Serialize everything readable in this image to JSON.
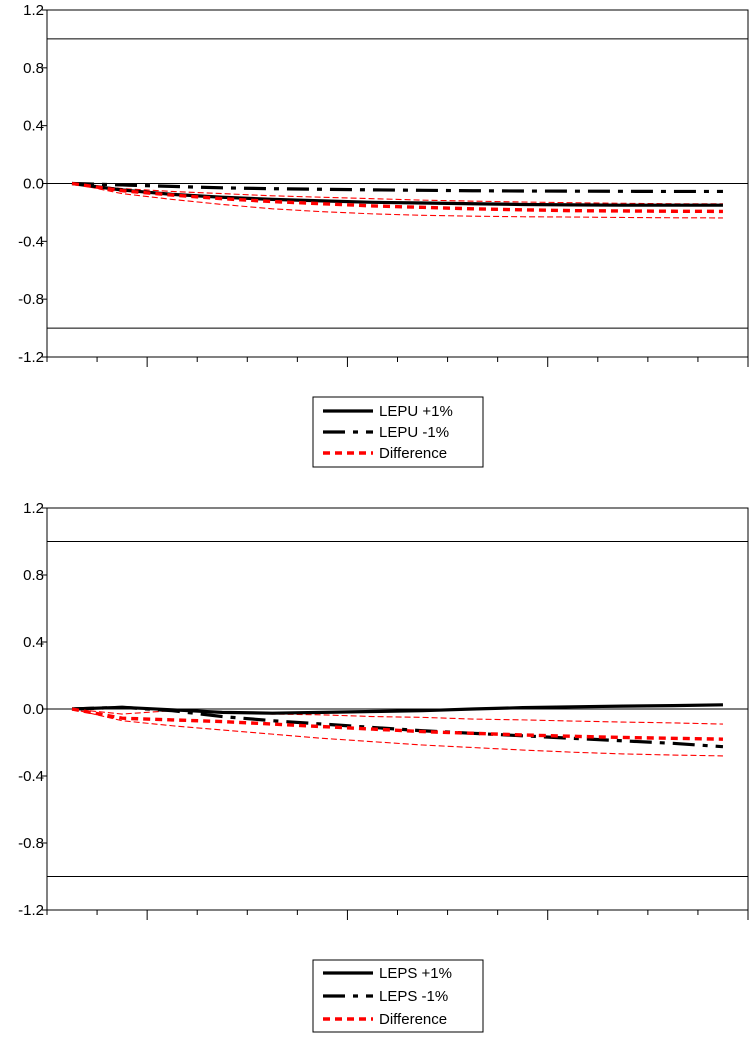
{
  "chart_data": [
    {
      "type": "line",
      "title": "",
      "xlabel": "",
      "ylabel": "",
      "ylim": [
        -1.2,
        1.2
      ],
      "yticks": [
        "1.2",
        "0.8",
        "0.4",
        "0.0",
        "-0.4",
        "-0.8",
        "-1.2"
      ],
      "ytick_values": [
        1.2,
        0.8,
        0.4,
        0.0,
        -0.4,
        -0.8,
        -1.2
      ],
      "x": [
        0,
        1,
        2,
        3,
        4,
        5,
        6,
        7,
        8,
        9,
        10,
        11,
        12,
        13
      ],
      "xlim": [
        -0.5,
        13.5
      ],
      "reference_lines": [
        1.0,
        0.0,
        -1.0
      ],
      "grid": false,
      "legend_position": "bottom-center",
      "series": [
        {
          "name": "LEPU +1%",
          "style": "solid",
          "color": "#000000",
          "values": [
            0.0,
            -0.045,
            -0.075,
            -0.095,
            -0.11,
            -0.12,
            -0.13,
            -0.135,
            -0.14,
            -0.145,
            -0.148,
            -0.15,
            -0.15,
            -0.15
          ]
        },
        {
          "name": "LEPU -1%",
          "style": "longdash",
          "color": "#000000",
          "values": [
            0.0,
            -0.01,
            -0.02,
            -0.03,
            -0.036,
            -0.04,
            -0.044,
            -0.047,
            -0.05,
            -0.052,
            -0.053,
            -0.054,
            -0.055,
            -0.055
          ]
        },
        {
          "name": "Difference",
          "style": "dotted",
          "color": "#ff0000",
          "values": [
            0.0,
            -0.05,
            -0.08,
            -0.105,
            -0.125,
            -0.14,
            -0.155,
            -0.165,
            -0.175,
            -0.182,
            -0.188,
            -0.19,
            -0.192,
            -0.193
          ]
        },
        {
          "name": "",
          "style": "thin-dash",
          "color": "#ff0000",
          "values": [
            0.0,
            -0.035,
            -0.055,
            -0.07,
            -0.085,
            -0.095,
            -0.105,
            -0.115,
            -0.122,
            -0.128,
            -0.133,
            -0.137,
            -0.14,
            -0.14
          ]
        },
        {
          "name": "",
          "style": "thin-dash",
          "color": "#ff0000",
          "values": [
            0.0,
            -0.07,
            -0.11,
            -0.145,
            -0.175,
            -0.195,
            -0.21,
            -0.22,
            -0.226,
            -0.23,
            -0.232,
            -0.235,
            -0.237,
            -0.238
          ]
        }
      ]
    },
    {
      "type": "line",
      "title": "",
      "xlabel": "",
      "ylabel": "",
      "ylim": [
        -1.2,
        1.2
      ],
      "yticks": [
        "1.2",
        "0.8",
        "0.4",
        "0.0",
        "-0.4",
        "-0.8",
        "-1.2"
      ],
      "ytick_values": [
        1.2,
        0.8,
        0.4,
        0.0,
        -0.4,
        -0.8,
        -1.2
      ],
      "x": [
        0,
        1,
        2,
        3,
        4,
        5,
        6,
        7,
        8,
        9,
        10,
        11,
        12,
        13
      ],
      "xlim": [
        -0.5,
        13.5
      ],
      "reference_lines": [
        1.0,
        0.0,
        -1.0
      ],
      "grid": false,
      "legend_position": "bottom-center",
      "series": [
        {
          "name": "LEPS +1%",
          "style": "solid",
          "color": "#000000",
          "values": [
            0.0,
            0.01,
            -0.005,
            -0.02,
            -0.025,
            -0.02,
            -0.015,
            -0.01,
            0.0,
            0.008,
            0.013,
            0.017,
            0.02,
            0.025
          ]
        },
        {
          "name": "LEPS -1%",
          "style": "longdash",
          "color": "#000000",
          "values": [
            0.0,
            0.01,
            -0.01,
            -0.045,
            -0.07,
            -0.09,
            -0.11,
            -0.13,
            -0.145,
            -0.16,
            -0.175,
            -0.19,
            -0.205,
            -0.225
          ]
        },
        {
          "name": "Difference",
          "style": "dotted",
          "color": "#ff0000",
          "values": [
            0.0,
            -0.055,
            -0.065,
            -0.075,
            -0.09,
            -0.105,
            -0.12,
            -0.135,
            -0.145,
            -0.155,
            -0.163,
            -0.17,
            -0.175,
            -0.18
          ]
        },
        {
          "name": "",
          "style": "thin-dash",
          "color": "#ff0000",
          "values": [
            0.0,
            -0.03,
            -0.01,
            -0.02,
            -0.03,
            -0.035,
            -0.045,
            -0.05,
            -0.06,
            -0.065,
            -0.072,
            -0.078,
            -0.083,
            -0.09
          ]
        },
        {
          "name": "",
          "style": "thin-dash",
          "color": "#ff0000",
          "values": [
            0.0,
            -0.07,
            -0.1,
            -0.125,
            -0.15,
            -0.175,
            -0.195,
            -0.215,
            -0.23,
            -0.245,
            -0.258,
            -0.268,
            -0.275,
            -0.28
          ]
        }
      ]
    }
  ]
}
